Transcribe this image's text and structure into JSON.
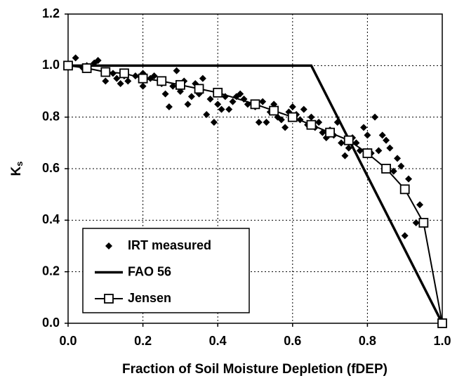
{
  "chart_data": {
    "type": "scatter",
    "x_label": "Fraction of Soil Moisture Depletion (fDEP)",
    "y_label": "K",
    "y_label_subscript": "s",
    "xlim": [
      0,
      1
    ],
    "ylim": [
      0,
      1.2
    ],
    "xticks": [
      {
        "value": 0,
        "label": "0.0"
      },
      0.2,
      0.4,
      0.6,
      0.8,
      {
        "value": 1,
        "label": "1.0"
      }
    ],
    "yticks": [
      {
        "value": 0,
        "label": "0.0"
      },
      0.2,
      0.4,
      0.6,
      0.8,
      {
        "value": 1,
        "label": "1.0"
      },
      1.2
    ],
    "grid": true,
    "legend": "lower left",
    "series": [
      {
        "name": "IRT measured",
        "type": "scatter",
        "color": "#000000",
        "x": [
          0.02,
          0.04,
          0.05,
          0.07,
          0.08,
          0.1,
          0.1,
          0.12,
          0.13,
          0.14,
          0.15,
          0.16,
          0.18,
          0.2,
          0.2,
          0.22,
          0.23,
          0.25,
          0.26,
          0.27,
          0.28,
          0.29,
          0.3,
          0.31,
          0.32,
          0.33,
          0.34,
          0.35,
          0.36,
          0.37,
          0.38,
          0.39,
          0.4,
          0.41,
          0.42,
          0.43,
          0.44,
          0.45,
          0.46,
          0.47,
          0.48,
          0.5,
          0.51,
          0.52,
          0.53,
          0.54,
          0.55,
          0.56,
          0.57,
          0.58,
          0.59,
          0.6,
          0.61,
          0.62,
          0.63,
          0.64,
          0.65,
          0.66,
          0.67,
          0.68,
          0.69,
          0.7,
          0.71,
          0.72,
          0.73,
          0.74,
          0.75,
          0.76,
          0.77,
          0.78,
          0.79,
          0.8,
          0.81,
          0.82,
          0.83,
          0.84,
          0.85,
          0.86,
          0.87,
          0.88,
          0.89,
          0.9,
          0.91,
          0.93,
          0.94
        ],
        "values": [
          1.03,
          0.99,
          1.0,
          1.01,
          1.02,
          0.94,
          0.98,
          0.97,
          0.95,
          0.93,
          0.96,
          0.94,
          0.96,
          0.92,
          0.97,
          0.95,
          0.96,
          0.93,
          0.89,
          0.84,
          0.92,
          0.98,
          0.9,
          0.94,
          0.85,
          0.88,
          0.93,
          0.89,
          0.95,
          0.81,
          0.87,
          0.78,
          0.85,
          0.83,
          0.88,
          0.83,
          0.86,
          0.88,
          0.89,
          0.87,
          0.85,
          0.84,
          0.78,
          0.86,
          0.78,
          0.82,
          0.85,
          0.8,
          0.79,
          0.76,
          0.82,
          0.84,
          0.81,
          0.79,
          0.83,
          0.77,
          0.8,
          0.76,
          0.78,
          0.74,
          0.72,
          0.75,
          0.73,
          0.78,
          0.7,
          0.65,
          0.68,
          0.72,
          0.7,
          0.67,
          0.76,
          0.73,
          0.66,
          0.8,
          0.67,
          0.73,
          0.71,
          0.68,
          0.59,
          0.64,
          0.61,
          0.34,
          0.56,
          0.39,
          0.46
        ]
      },
      {
        "name": "FAO 56",
        "type": "line",
        "color": "#000000",
        "x": [
          0,
          0.65,
          1
        ],
        "values": [
          1,
          1,
          0
        ]
      },
      {
        "name": "Jensen",
        "type": "line",
        "marker": "square",
        "color": "#000000",
        "x": [
          0,
          0.05,
          0.1,
          0.15,
          0.2,
          0.25,
          0.3,
          0.35,
          0.4,
          0.5,
          0.55,
          0.6,
          0.65,
          0.7,
          0.75,
          0.8,
          0.85,
          0.9,
          0.95,
          1
        ],
        "values": [
          1,
          0.99,
          0.975,
          0.97,
          0.95,
          0.94,
          0.925,
          0.91,
          0.895,
          0.85,
          0.825,
          0.8,
          0.77,
          0.74,
          0.71,
          0.66,
          0.6,
          0.52,
          0.39,
          0
        ]
      }
    ]
  }
}
